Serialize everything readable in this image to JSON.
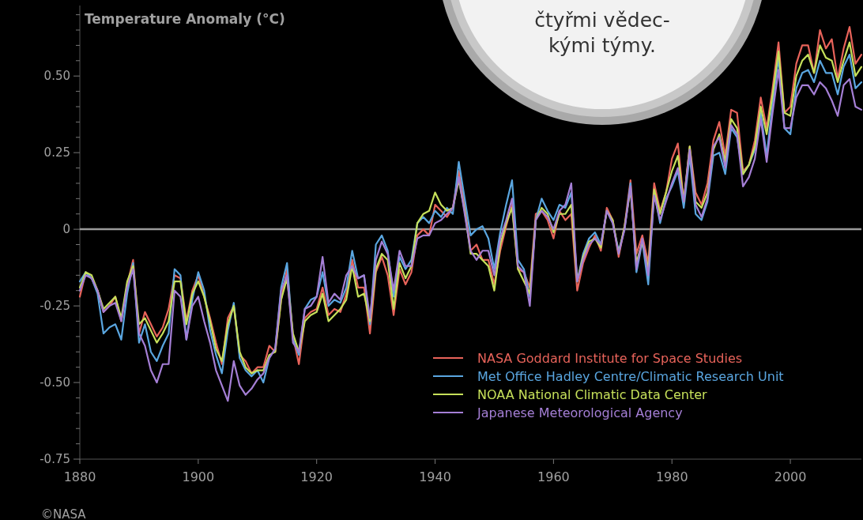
{
  "chart_data": {
    "type": "line",
    "ylabel": "Temperature Anomaly (°C)",
    "x": [
      1880,
      1881,
      1882,
      1883,
      1884,
      1885,
      1886,
      1887,
      1888,
      1889,
      1890,
      1891,
      1892,
      1893,
      1894,
      1895,
      1896,
      1897,
      1898,
      1899,
      1900,
      1901,
      1902,
      1903,
      1904,
      1905,
      1906,
      1907,
      1908,
      1909,
      1910,
      1911,
      1912,
      1913,
      1914,
      1915,
      1916,
      1917,
      1918,
      1919,
      1920,
      1921,
      1922,
      1923,
      1924,
      1925,
      1926,
      1927,
      1928,
      1929,
      1930,
      1931,
      1932,
      1933,
      1934,
      1935,
      1936,
      1937,
      1938,
      1939,
      1940,
      1941,
      1942,
      1943,
      1944,
      1945,
      1946,
      1947,
      1948,
      1949,
      1950,
      1951,
      1952,
      1953,
      1954,
      1955,
      1956,
      1957,
      1958,
      1959,
      1960,
      1961,
      1962,
      1963,
      1964,
      1965,
      1966,
      1967,
      1968,
      1969,
      1970,
      1971,
      1972,
      1973,
      1974,
      1975,
      1976,
      1977,
      1978,
      1979,
      1980,
      1981,
      1982,
      1983,
      1984,
      1985,
      1986,
      1987,
      1988,
      1989,
      1990,
      1991,
      1992,
      1993,
      1994,
      1995,
      1996,
      1997,
      1998,
      1999,
      2000,
      2001,
      2002,
      2003,
      2004,
      2005,
      2006,
      2007,
      2008,
      2009,
      2010,
      2011,
      2012
    ],
    "series": [
      {
        "name": "NASA Goddard Institute for Space Studies",
        "color": "#e8635a",
        "values": [
          -0.22,
          -0.14,
          -0.16,
          -0.2,
          -0.27,
          -0.25,
          -0.22,
          -0.3,
          -0.18,
          -0.1,
          -0.34,
          -0.27,
          -0.31,
          -0.35,
          -0.32,
          -0.26,
          -0.15,
          -0.16,
          -0.3,
          -0.2,
          -0.15,
          -0.22,
          -0.29,
          -0.37,
          -0.44,
          -0.29,
          -0.25,
          -0.41,
          -0.43,
          -0.47,
          -0.45,
          -0.45,
          -0.38,
          -0.4,
          -0.23,
          -0.13,
          -0.35,
          -0.44,
          -0.29,
          -0.27,
          -0.26,
          -0.19,
          -0.28,
          -0.26,
          -0.27,
          -0.21,
          -0.1,
          -0.19,
          -0.19,
          -0.34,
          -0.14,
          -0.09,
          -0.15,
          -0.28,
          -0.13,
          -0.18,
          -0.14,
          -0.02,
          0.0,
          -0.02,
          0.08,
          0.06,
          0.04,
          0.07,
          0.19,
          0.08,
          -0.07,
          -0.05,
          -0.1,
          -0.1,
          -0.18,
          -0.07,
          0.01,
          0.08,
          -0.13,
          -0.14,
          -0.19,
          0.05,
          0.06,
          0.03,
          -0.03,
          0.06,
          0.03,
          0.05,
          -0.2,
          -0.11,
          -0.06,
          -0.02,
          -0.07,
          0.07,
          0.03,
          -0.09,
          0.01,
          0.16,
          -0.08,
          -0.02,
          -0.11,
          0.15,
          0.06,
          0.12,
          0.23,
          0.28,
          0.09,
          0.27,
          0.12,
          0.08,
          0.15,
          0.29,
          0.35,
          0.24,
          0.39,
          0.38,
          0.19,
          0.21,
          0.29,
          0.43,
          0.33,
          0.46,
          0.61,
          0.38,
          0.4,
          0.54,
          0.6,
          0.6,
          0.51,
          0.65,
          0.59,
          0.62,
          0.49,
          0.59,
          0.66,
          0.54,
          0.57
        ]
      },
      {
        "name": "Met Office Hadley Centre/Climatic Research Unit",
        "color": "#5aa6e0",
        "values": [
          -0.17,
          -0.14,
          -0.16,
          -0.21,
          -0.34,
          -0.32,
          -0.31,
          -0.36,
          -0.21,
          -0.11,
          -0.37,
          -0.31,
          -0.4,
          -0.43,
          -0.38,
          -0.34,
          -0.13,
          -0.15,
          -0.36,
          -0.23,
          -0.14,
          -0.2,
          -0.33,
          -0.41,
          -0.47,
          -0.33,
          -0.24,
          -0.42,
          -0.46,
          -0.48,
          -0.46,
          -0.5,
          -0.42,
          -0.39,
          -0.19,
          -0.11,
          -0.36,
          -0.41,
          -0.26,
          -0.23,
          -0.22,
          -0.14,
          -0.25,
          -0.23,
          -0.24,
          -0.19,
          -0.07,
          -0.16,
          -0.15,
          -0.31,
          -0.05,
          -0.02,
          -0.07,
          -0.22,
          -0.09,
          -0.13,
          -0.1,
          0.02,
          0.04,
          0.02,
          0.06,
          0.04,
          0.07,
          0.05,
          0.22,
          0.1,
          -0.02,
          0.0,
          0.01,
          -0.03,
          -0.13,
          -0.01,
          0.08,
          0.16,
          -0.1,
          -0.13,
          -0.22,
          0.03,
          0.1,
          0.06,
          0.03,
          0.08,
          0.07,
          0.12,
          -0.17,
          -0.08,
          -0.03,
          -0.01,
          -0.05,
          0.06,
          0.02,
          -0.07,
          0.0,
          0.15,
          -0.14,
          -0.04,
          -0.18,
          0.12,
          0.02,
          0.1,
          0.14,
          0.19,
          0.07,
          0.24,
          0.05,
          0.03,
          0.09,
          0.24,
          0.25,
          0.18,
          0.33,
          0.3,
          0.18,
          0.21,
          0.26,
          0.38,
          0.24,
          0.41,
          0.56,
          0.33,
          0.31,
          0.46,
          0.51,
          0.52,
          0.48,
          0.55,
          0.51,
          0.51,
          0.44,
          0.53,
          0.57,
          0.46,
          0.48
        ]
      },
      {
        "name": "NOAA National Climatic Data Center",
        "color": "#c6e05a",
        "values": [
          -0.19,
          -0.14,
          -0.15,
          -0.2,
          -0.26,
          -0.24,
          -0.22,
          -0.29,
          -0.17,
          -0.12,
          -0.31,
          -0.29,
          -0.33,
          -0.37,
          -0.34,
          -0.3,
          -0.17,
          -0.17,
          -0.31,
          -0.21,
          -0.17,
          -0.22,
          -0.3,
          -0.39,
          -0.43,
          -0.31,
          -0.25,
          -0.4,
          -0.45,
          -0.47,
          -0.46,
          -0.46,
          -0.41,
          -0.4,
          -0.23,
          -0.16,
          -0.34,
          -0.4,
          -0.3,
          -0.28,
          -0.27,
          -0.21,
          -0.3,
          -0.28,
          -0.26,
          -0.23,
          -0.12,
          -0.22,
          -0.21,
          -0.3,
          -0.13,
          -0.08,
          -0.1,
          -0.26,
          -0.11,
          -0.16,
          -0.12,
          0.02,
          0.05,
          0.06,
          0.12,
          0.08,
          0.06,
          0.07,
          0.16,
          0.06,
          -0.08,
          -0.08,
          -0.1,
          -0.12,
          -0.2,
          -0.05,
          0.02,
          0.07,
          -0.13,
          -0.17,
          -0.21,
          0.03,
          0.07,
          0.05,
          -0.01,
          0.05,
          0.05,
          0.08,
          -0.17,
          -0.09,
          -0.04,
          -0.03,
          -0.06,
          0.06,
          0.03,
          -0.08,
          0.01,
          0.13,
          -0.11,
          -0.04,
          -0.13,
          0.13,
          0.05,
          0.12,
          0.19,
          0.24,
          0.09,
          0.27,
          0.09,
          0.07,
          0.12,
          0.26,
          0.31,
          0.22,
          0.36,
          0.33,
          0.18,
          0.21,
          0.27,
          0.4,
          0.31,
          0.44,
          0.58,
          0.38,
          0.37,
          0.5,
          0.55,
          0.57,
          0.51,
          0.6,
          0.56,
          0.55,
          0.48,
          0.55,
          0.61,
          0.5,
          0.53
        ]
      },
      {
        "name": "Japanese Meteorological Agency",
        "color": "#a57fd6",
        "values": [
          -0.2,
          -0.15,
          -0.16,
          -0.2,
          -0.27,
          -0.25,
          -0.24,
          -0.3,
          -0.19,
          -0.13,
          -0.34,
          -0.38,
          -0.46,
          -0.5,
          -0.44,
          -0.44,
          -0.2,
          -0.22,
          -0.36,
          -0.25,
          -0.22,
          -0.3,
          -0.37,
          -0.46,
          -0.51,
          -0.56,
          -0.43,
          -0.51,
          -0.54,
          -0.52,
          -0.49,
          -0.47,
          -0.42,
          -0.39,
          -0.2,
          -0.15,
          -0.37,
          -0.4,
          -0.26,
          -0.25,
          -0.22,
          -0.09,
          -0.24,
          -0.21,
          -0.23,
          -0.15,
          -0.12,
          -0.16,
          -0.15,
          -0.29,
          -0.1,
          -0.04,
          -0.08,
          -0.2,
          -0.07,
          -0.12,
          -0.12,
          -0.03,
          -0.02,
          -0.02,
          0.02,
          0.03,
          0.05,
          0.07,
          0.17,
          0.05,
          -0.07,
          -0.1,
          -0.07,
          -0.07,
          -0.15,
          -0.03,
          0.03,
          0.1,
          -0.12,
          -0.14,
          -0.25,
          0.03,
          0.06,
          0.04,
          0.0,
          0.06,
          0.08,
          0.15,
          -0.17,
          -0.1,
          -0.05,
          -0.03,
          -0.05,
          0.06,
          0.02,
          -0.08,
          0.0,
          0.14,
          -0.13,
          -0.03,
          -0.15,
          0.11,
          0.03,
          0.09,
          0.15,
          0.2,
          0.09,
          0.26,
          0.08,
          0.04,
          0.1,
          0.27,
          0.3,
          0.2,
          0.34,
          0.31,
          0.14,
          0.17,
          0.23,
          0.36,
          0.22,
          0.38,
          0.52,
          0.33,
          0.33,
          0.43,
          0.47,
          0.47,
          0.44,
          0.48,
          0.46,
          0.42,
          0.37,
          0.47,
          0.49,
          0.4,
          0.39
        ]
      }
    ],
    "xlim": [
      1880,
      2012
    ],
    "xticks": [
      1880,
      1900,
      1920,
      1940,
      1960,
      1980,
      2000
    ],
    "ylim": [
      -0.75,
      0.73
    ],
    "yticks": [
      {
        "value": -0.75,
        "label": "-0.75"
      },
      {
        "value": -0.7,
        "label": null
      },
      {
        "value": -0.65,
        "label": null
      },
      {
        "value": -0.6,
        "label": null
      },
      {
        "value": -0.55,
        "label": null
      },
      {
        "value": -0.5,
        "label": "-0.50"
      },
      {
        "value": -0.45,
        "label": null
      },
      {
        "value": -0.4,
        "label": null
      },
      {
        "value": -0.35,
        "label": null
      },
      {
        "value": -0.3,
        "label": null
      },
      {
        "value": -0.25,
        "label": "-0.25"
      },
      {
        "value": -0.2,
        "label": null
      },
      {
        "value": -0.15,
        "label": null
      },
      {
        "value": -0.1,
        "label": null
      },
      {
        "value": -0.05,
        "label": null
      },
      {
        "value": 0,
        "label": "0"
      },
      {
        "value": 0.05,
        "label": null
      },
      {
        "value": 0.1,
        "label": null
      },
      {
        "value": 0.15,
        "label": null
      },
      {
        "value": 0.2,
        "label": null
      },
      {
        "value": 0.25,
        "label": "0.25"
      },
      {
        "value": 0.3,
        "label": null
      },
      {
        "value": 0.35,
        "label": null
      },
      {
        "value": 0.4,
        "label": null
      },
      {
        "value": 0.45,
        "label": null
      },
      {
        "value": 0.5,
        "label": "0.50"
      },
      {
        "value": 0.55,
        "label": null
      },
      {
        "value": 0.6,
        "label": null
      },
      {
        "value": 0.65,
        "label": null
      },
      {
        "value": 0.7,
        "label": null
      }
    ],
    "ref_lines": [
      {
        "axis": "y",
        "value": 0,
        "color": "#9a9a9a"
      }
    ],
    "grid": false,
    "legend": "bottom right",
    "marker": "none",
    "line_style": "solid",
    "annotations": [
      "čtyřmi vědec-kými týmy.",
      "©NASA"
    ]
  }
}
